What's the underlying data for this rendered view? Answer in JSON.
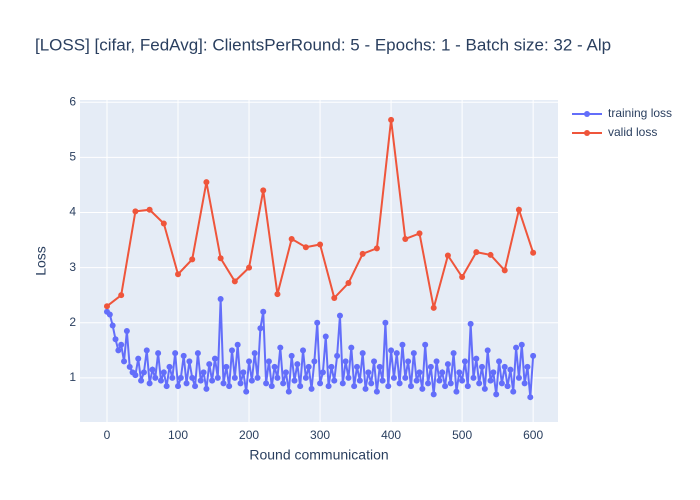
{
  "chart_data": {
    "type": "line",
    "title": "[LOSS] [cifar, FedAvg]: ClientsPerRound: 5 - Epochs: 1 - Batch size: 32 - Alp",
    "xlabel": "Round communication",
    "ylabel": "Loss",
    "xlim": [
      -38,
      635
    ],
    "ylim": [
      0.2,
      6.04
    ],
    "xticks": [
      0,
      100,
      200,
      300,
      400,
      500,
      600
    ],
    "yticks": [
      1,
      2,
      3,
      4,
      5,
      6
    ],
    "grid": true,
    "legend": "right",
    "series": [
      {
        "name": "training loss",
        "color": "#636efa",
        "x": [
          0,
          4,
          8,
          12,
          16,
          20,
          24,
          28,
          32,
          36,
          40,
          44,
          48,
          52,
          56,
          60,
          64,
          68,
          72,
          76,
          80,
          84,
          88,
          92,
          96,
          100,
          104,
          108,
          112,
          116,
          120,
          124,
          128,
          132,
          136,
          140,
          144,
          148,
          152,
          156,
          160,
          164,
          168,
          172,
          176,
          180,
          184,
          188,
          192,
          196,
          200,
          204,
          208,
          212,
          216,
          220,
          224,
          228,
          232,
          236,
          240,
          244,
          248,
          252,
          256,
          260,
          264,
          268,
          272,
          276,
          280,
          284,
          288,
          292,
          296,
          300,
          304,
          308,
          312,
          316,
          320,
          324,
          328,
          332,
          336,
          340,
          344,
          348,
          352,
          356,
          360,
          364,
          368,
          372,
          376,
          380,
          384,
          388,
          392,
          396,
          400,
          404,
          408,
          412,
          416,
          420,
          424,
          428,
          432,
          436,
          440,
          444,
          448,
          452,
          456,
          460,
          464,
          468,
          472,
          476,
          480,
          484,
          488,
          492,
          496,
          500,
          504,
          508,
          512,
          516,
          520,
          524,
          528,
          532,
          536,
          540,
          544,
          548,
          552,
          556,
          560,
          564,
          568,
          572,
          576,
          580,
          584,
          588,
          592,
          596,
          600
        ],
        "values": [
          2.2,
          2.15,
          1.95,
          1.7,
          1.5,
          1.6,
          1.3,
          1.85,
          1.2,
          1.1,
          1.05,
          1.35,
          0.95,
          1.1,
          1.5,
          0.9,
          1.15,
          1.0,
          1.45,
          0.95,
          1.1,
          0.85,
          1.2,
          1.0,
          1.45,
          0.85,
          1.0,
          1.4,
          0.9,
          1.3,
          1.0,
          0.85,
          1.45,
          0.95,
          1.1,
          0.8,
          1.25,
          0.95,
          1.35,
          1.0,
          2.43,
          0.9,
          1.2,
          0.85,
          1.5,
          1.0,
          1.6,
          0.9,
          1.1,
          0.75,
          1.3,
          0.95,
          1.45,
          1.0,
          1.9,
          2.2,
          0.9,
          1.3,
          0.85,
          1.2,
          1.0,
          1.55,
          0.9,
          1.1,
          0.75,
          1.4,
          0.95,
          1.25,
          0.85,
          1.5,
          1.0,
          1.2,
          0.8,
          1.3,
          2.0,
          0.9,
          1.1,
          1.75,
          0.85,
          1.2,
          0.95,
          1.4,
          2.13,
          0.9,
          1.3,
          1.0,
          1.55,
          0.85,
          1.2,
          0.95,
          1.45,
          0.8,
          1.1,
          0.9,
          1.3,
          0.75,
          1.2,
          0.95,
          2.0,
          0.85,
          1.5,
          1.0,
          1.45,
          0.9,
          1.6,
          1.0,
          1.3,
          0.85,
          1.45,
          0.95,
          1.1,
          0.8,
          1.6,
          0.9,
          1.2,
          0.7,
          1.3,
          0.95,
          1.1,
          0.85,
          1.25,
          0.9,
          1.45,
          0.75,
          1.1,
          0.95,
          1.3,
          0.85,
          1.98,
          1.0,
          1.35,
          0.9,
          1.2,
          0.8,
          1.5,
          0.95,
          1.1,
          0.7,
          1.3,
          0.9,
          1.2,
          0.85,
          1.15,
          0.75,
          1.55,
          1.0,
          1.6,
          0.9,
          1.2,
          0.65,
          1.4
        ]
      },
      {
        "name": "valid loss",
        "color": "#EF553B",
        "x": [
          0,
          20,
          40,
          60,
          80,
          100,
          120,
          140,
          160,
          180,
          200,
          220,
          240,
          260,
          280,
          300,
          320,
          340,
          360,
          380,
          400,
          420,
          440,
          460,
          480,
          500,
          520,
          540,
          560,
          580,
          600
        ],
        "values": [
          2.3,
          2.5,
          4.02,
          4.05,
          3.8,
          2.88,
          3.15,
          4.55,
          3.17,
          2.75,
          3.0,
          4.4,
          2.52,
          3.52,
          3.37,
          3.42,
          2.45,
          2.72,
          3.25,
          3.35,
          5.68,
          3.52,
          3.62,
          2.27,
          3.22,
          2.83,
          3.28,
          3.23,
          2.95,
          4.05,
          3.27
        ]
      }
    ]
  }
}
